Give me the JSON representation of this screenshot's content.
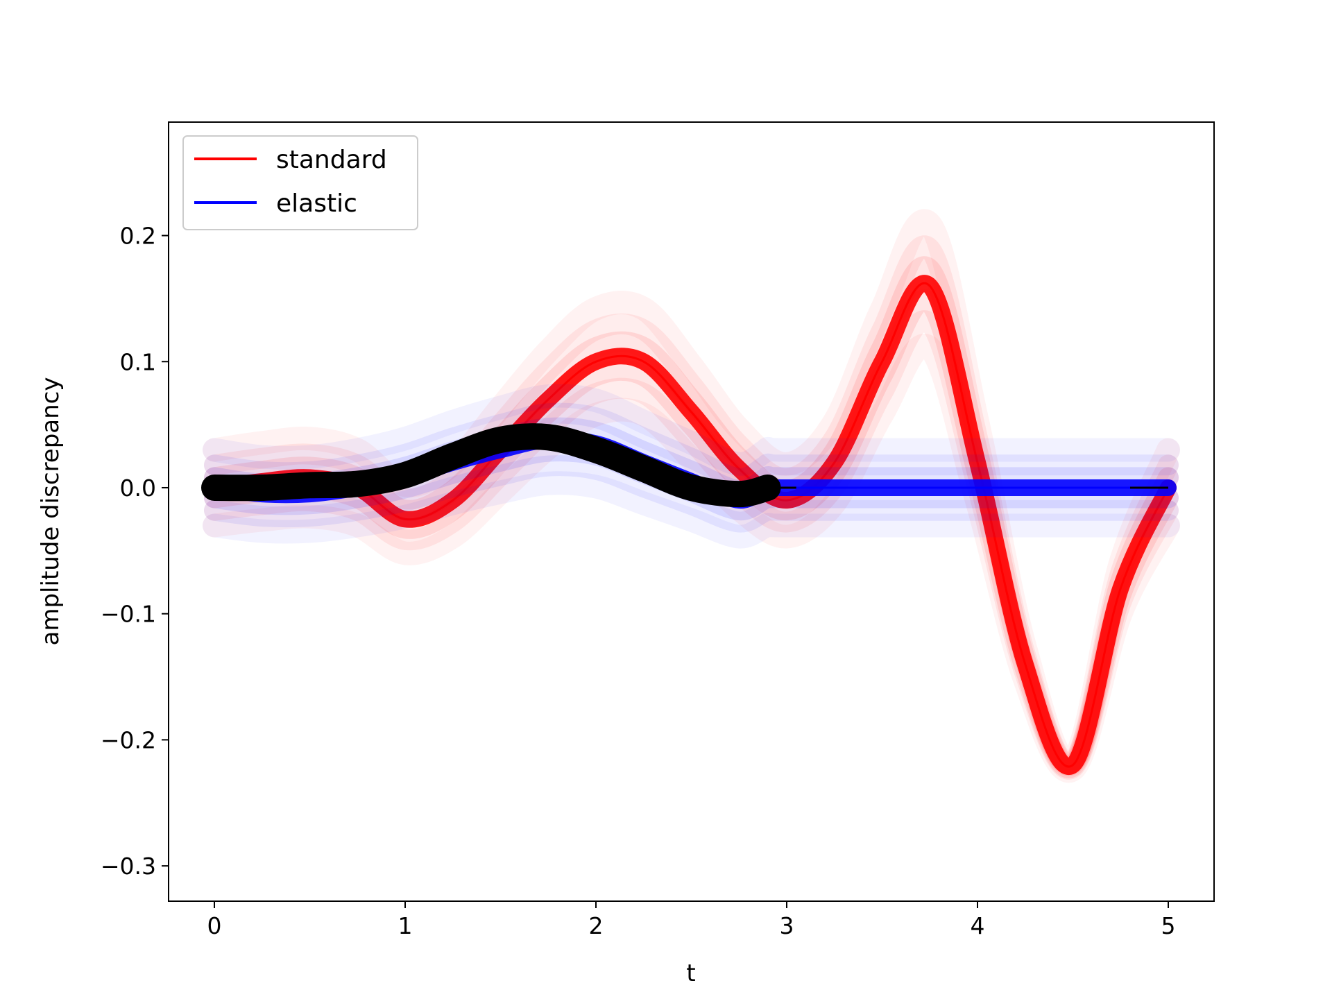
{
  "chart_data": {
    "type": "line",
    "title": "",
    "xlabel": "t",
    "ylabel": "amplitude discrepancy",
    "xlim": [
      -0.24,
      5.24
    ],
    "ylim": [
      -0.328,
      0.29
    ],
    "xticks": [
      0,
      1,
      2,
      3,
      4,
      5
    ],
    "xtick_labels": [
      "0",
      "1",
      "2",
      "3",
      "4",
      "5"
    ],
    "yticks": [
      0.2,
      0.1,
      0.0,
      -0.1,
      -0.2,
      -0.3
    ],
    "ytick_labels": [
      "0.2",
      "0.1",
      "0.0",
      "−0.1",
      "−0.2",
      "−0.3"
    ],
    "grid": false,
    "legend": {
      "placement": "top-left"
    },
    "colors": {
      "standard": "#ff0000",
      "elastic": "#0000ff",
      "mean": "#000000"
    },
    "series": [
      {
        "name": "standard",
        "color": "#ff0000",
        "band": true,
        "x": [
          0,
          0.25,
          0.5,
          0.75,
          1.0,
          1.25,
          1.5,
          1.75,
          2.0,
          2.25,
          2.5,
          2.75,
          3.0,
          3.25,
          3.5,
          3.75,
          4.0,
          4.25,
          4.5,
          4.75,
          5.0
        ],
        "values": [
          0.0,
          0.005,
          0.008,
          0.0,
          -0.025,
          -0.01,
          0.03,
          0.07,
          0.1,
          0.1,
          0.06,
          0.015,
          -0.01,
          0.02,
          0.1,
          0.16,
          0.02,
          -0.14,
          -0.22,
          -0.08,
          0.0
        ]
      },
      {
        "name": "elastic",
        "color": "#0000ff",
        "band": true,
        "x": [
          0,
          0.25,
          0.5,
          0.75,
          1.0,
          1.25,
          1.5,
          1.75,
          2.0,
          2.25,
          2.5,
          2.75,
          2.9,
          3.0,
          4.0,
          5.0
        ],
        "values": [
          0.0,
          -0.005,
          -0.005,
          0.0,
          0.008,
          0.02,
          0.03,
          0.038,
          0.035,
          0.02,
          0.005,
          -0.01,
          0.0,
          0.0,
          0.0,
          0.0
        ]
      },
      {
        "name": "",
        "color": "#000000",
        "band": false,
        "x": [
          0,
          0.25,
          0.5,
          0.75,
          1.0,
          1.25,
          1.5,
          1.75,
          2.0,
          2.25,
          2.5,
          2.75,
          2.9,
          3.0,
          4.0,
          5.0
        ],
        "values": [
          0.0,
          0.0,
          0.002,
          0.003,
          0.01,
          0.025,
          0.038,
          0.04,
          0.03,
          0.015,
          0.0,
          -0.005,
          0.0,
          0.0,
          0.0,
          0.0
        ]
      }
    ]
  }
}
